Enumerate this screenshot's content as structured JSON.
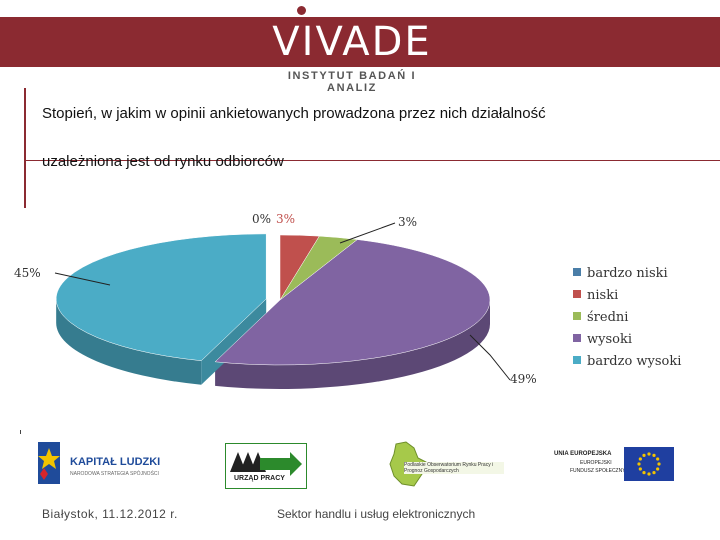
{
  "header": {
    "logo_text": "VIVADE",
    "subtitle": "INSTYTUT BADAŃ I ANALIZ"
  },
  "slide": {
    "title_line1": "Stopień, w jakim w opinii ankietowanych prowadzona przez nich działalność",
    "title_line2": "uzależniona jest od rynku odbiorców"
  },
  "chart_data": {
    "type": "pie",
    "categories": [
      "bardzo niski",
      "niski",
      "średni",
      "wysoki",
      "bardzo wysoki"
    ],
    "values": [
      0,
      3,
      3,
      49,
      45
    ],
    "data_labels": [
      "0%",
      "3%",
      "3%",
      "49%",
      "45%"
    ],
    "colors": [
      "#4a7ea8",
      "#c0504d",
      "#9bbb59",
      "#8064a2",
      "#4bacc6"
    ],
    "legend_position": "right",
    "three_d": true,
    "exploded_slice": "bardzo wysoki"
  },
  "footer": {
    "logos": [
      {
        "text": "KAPITAŁ LUDZKI",
        "sub": "NARODOWA STRATEGIA SPÓJNOŚCI"
      },
      {
        "text": "URZĄD PRACY"
      },
      {
        "text": "Podlaskie Obserwatorium Rynku Pracy i Prognoz Gospodarczych"
      },
      {
        "text": "UNIA EUROPEJSKA",
        "sub1": "EUROPEJSKI",
        "sub2": "FUNDUSZ SPOŁECZNY"
      }
    ],
    "date": "Białystok, 11.12.2012 r.",
    "sector": "Sektor handlu i usług elektronicznych"
  }
}
